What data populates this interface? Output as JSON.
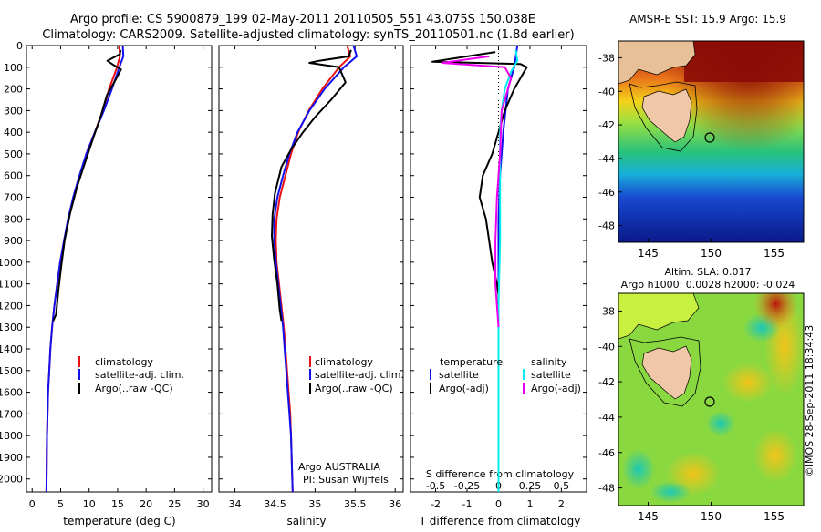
{
  "title_line1": "Argo profile: CS 5900879_199 02-May-2011 20110505_551 43.075S 150.038E",
  "title_line2": "Climatology: CARS2009. Satellite-adjusted climatology: synTS_20110501.nc (1.8d earlier)",
  "footer": "©IMOS 28-Sep-2011 18:34:43",
  "depth_ticks": [
    0,
    100,
    200,
    300,
    400,
    500,
    600,
    700,
    800,
    900,
    1000,
    1100,
    1200,
    1300,
    1400,
    1500,
    1600,
    1700,
    1800,
    1900,
    2000
  ],
  "chart_data": [
    {
      "type": "line",
      "id": "temperature",
      "xlabel": "temperature (deg C)",
      "ylabel": "",
      "xlim": [
        -1,
        31.5
      ],
      "ylim": [
        2060,
        0
      ],
      "xticks": [
        0,
        5,
        10,
        15,
        20,
        25,
        30
      ],
      "legend": {
        "placement": "bottom-left",
        "entries": [
          {
            "label": "climatology",
            "color": "#e11"
          },
          {
            "label": "satellite-adj. clim.",
            "color": "#11e"
          },
          {
            "label": "Argo(..raw -QC)",
            "color": "#000"
          }
        ]
      },
      "series": [
        {
          "name": "climatology",
          "color": "#e11",
          "x": [
            15.3,
            15.4,
            14.9,
            13.5,
            12.4,
            11.0,
            9.5,
            8.4,
            7.3,
            6.4,
            5.6,
            4.9,
            4.4,
            3.9,
            3.5,
            3.2,
            3.0,
            2.8,
            2.7,
            2.6,
            2.5
          ],
          "y": [
            0,
            50,
            100,
            200,
            300,
            400,
            500,
            600,
            700,
            800,
            900,
            1000,
            1100,
            1200,
            1300,
            1400,
            1500,
            1600,
            1700,
            1800,
            2060
          ]
        },
        {
          "name": "satellite-adj. clim.",
          "color": "#11e",
          "x": [
            15.9,
            16.0,
            15.3,
            14.0,
            12.6,
            11.0,
            9.5,
            8.3,
            7.2,
            6.3,
            5.6,
            4.9,
            4.4,
            3.9,
            3.5,
            3.2,
            3.0,
            2.8,
            2.7,
            2.6,
            2.5
          ],
          "y": [
            0,
            50,
            100,
            200,
            300,
            400,
            500,
            600,
            700,
            800,
            900,
            1000,
            1100,
            1200,
            1300,
            1400,
            1500,
            1600,
            1700,
            1800,
            2060
          ]
        },
        {
          "name": "Argo(..raw -QC)",
          "color": "#000",
          "x": [
            15.5,
            15.4,
            13.2,
            14.3,
            15.6,
            14.6,
            13.1,
            12.0,
            10.8,
            9.4,
            7.9,
            6.6,
            5.7,
            5.1,
            4.6,
            4.2,
            3.7
          ],
          "y": [
            20,
            40,
            70,
            90,
            110,
            160,
            230,
            330,
            420,
            530,
            650,
            780,
            900,
            1020,
            1130,
            1240,
            1270
          ]
        }
      ]
    },
    {
      "type": "line",
      "id": "salinity",
      "xlabel": "salinity",
      "xlim": [
        33.8,
        36.1
      ],
      "ylim": [
        2060,
        0
      ],
      "xticks": [
        34,
        34.5,
        35,
        35.5,
        36
      ],
      "xticklabels": [
        "34",
        "34.5",
        "35",
        "35.5",
        "36"
      ],
      "legend": {
        "placement": "bottom-left",
        "entries": [
          {
            "label": "climatology",
            "color": "#e11"
          },
          {
            "label": "satellite-adj. clim.",
            "color": "#11e"
          },
          {
            "label": "Argo(..raw -QC)",
            "color": "#000"
          }
        ]
      },
      "annotation": [
        "Argo AUSTRALIA",
        "PI: Susan Wijffels"
      ],
      "series": [
        {
          "name": "climatology",
          "color": "#e11",
          "x": [
            35.4,
            35.44,
            35.3,
            35.09,
            34.92,
            34.79,
            34.7,
            34.63,
            34.56,
            34.52,
            34.51,
            34.52,
            34.55,
            34.58,
            34.61,
            34.63,
            34.65,
            34.67,
            34.69,
            34.7,
            34.72
          ],
          "y": [
            0,
            50,
            100,
            200,
            300,
            400,
            500,
            600,
            700,
            800,
            900,
            1000,
            1100,
            1200,
            1300,
            1400,
            1500,
            1600,
            1700,
            1800,
            2060
          ]
        },
        {
          "name": "satellite-adj. clim.",
          "color": "#11e",
          "x": [
            35.48,
            35.52,
            35.36,
            35.12,
            34.93,
            34.78,
            34.68,
            34.6,
            34.53,
            34.49,
            34.49,
            34.51,
            34.54,
            34.57,
            34.6,
            34.62,
            34.64,
            34.66,
            34.68,
            34.7,
            34.72
          ],
          "y": [
            0,
            50,
            100,
            200,
            300,
            400,
            500,
            600,
            700,
            800,
            900,
            1000,
            1100,
            1200,
            1300,
            1400,
            1500,
            1600,
            1700,
            1800,
            2060
          ]
        },
        {
          "name": "Argo(..raw -QC)",
          "color": "#000",
          "x": [
            35.45,
            35.42,
            35.05,
            34.93,
            35.3,
            35.38,
            35.2,
            35.0,
            34.85,
            34.7,
            34.58,
            34.5,
            34.47,
            34.46,
            34.49,
            34.53,
            34.56,
            34.58
          ],
          "y": [
            20,
            50,
            70,
            80,
            100,
            170,
            250,
            330,
            400,
            480,
            560,
            680,
            780,
            880,
            990,
            1100,
            1220,
            1270
          ]
        }
      ]
    },
    {
      "type": "line",
      "id": "difference",
      "xlabel": "T difference from climatology",
      "xlabel_top": "S difference from climatology",
      "xlim": [
        -2.8,
        2.8
      ],
      "ylim": [
        2060,
        0
      ],
      "xticks": [
        -2,
        -1,
        0,
        1,
        2
      ],
      "xticks_s": [
        -0.5,
        -0.25,
        0,
        0.25,
        0.5
      ],
      "xticklabels_s": [
        "-0.5",
        "-0.25",
        "0",
        "0.25",
        "0.5"
      ],
      "legend": {
        "placement": "bottom",
        "temperature": {
          "header": "temperature",
          "entries": [
            {
              "label": "satellite",
              "color": "#11e"
            },
            {
              "label": "Argo(-adj)",
              "color": "#000"
            }
          ]
        },
        "salinity": {
          "header": "salinity",
          "entries": [
            {
              "label": "satellite",
              "color": "#0ee"
            },
            {
              "label": "Argo(-adj)",
              "color": "#e0e"
            }
          ]
        }
      },
      "series": [
        {
          "name": "temperature satellite",
          "color": "#11e",
          "x": [
            0.6,
            0.5,
            0.3,
            0.15,
            0.05,
            0.0,
            0.0,
            0.0,
            0.0,
            0.0,
            0.0
          ],
          "y": [
            0,
            100,
            200,
            400,
            600,
            800,
            1000,
            1200,
            1400,
            1600,
            2060
          ]
        },
        {
          "name": "temperature Argo(-adj)",
          "color": "#000",
          "x": [
            -0.1,
            -2.1,
            0.7,
            0.9,
            0.5,
            0.2,
            -0.2,
            -0.5,
            -0.6,
            -0.4,
            -0.3,
            -0.2,
            -0.05,
            0.0,
            0.0,
            0.0,
            0.0,
            0.0,
            0.0,
            0.0,
            0.0
          ],
          "y": [
            30,
            75,
            85,
            100,
            200,
            300,
            500,
            600,
            700,
            800,
            900,
            1000,
            1100,
            1150,
            1200,
            1230,
            1260,
            1300,
            1600,
            1800,
            2060
          ]
        },
        {
          "name": "salinity satellite",
          "color": "#0ee",
          "x": [
            0.55,
            0.6,
            0.4,
            0.2,
            0.1,
            0.05,
            0.05,
            0.05,
            0.0,
            0.0,
            0.0
          ],
          "y": [
            20,
            70,
            120,
            200,
            300,
            400,
            600,
            900,
            1200,
            1600,
            2060
          ]
        },
        {
          "name": "salinity Argo(-adj)",
          "color": "#e0e",
          "x": [
            -0.3,
            -1.8,
            0.2,
            0.4,
            0.3,
            0.1,
            0.05,
            -0.05,
            -0.1,
            -0.1,
            0.0
          ],
          "y": [
            50,
            80,
            100,
            150,
            200,
            300,
            500,
            700,
            900,
            1100,
            1300
          ]
        }
      ]
    }
  ],
  "maps": [
    {
      "id": "sst",
      "title": "AMSR-E SST: 15.9 Argo: 15.9",
      "xticks": [
        "145",
        "150",
        "155"
      ],
      "yticks": [
        "-38",
        "-40",
        "-42",
        "-44",
        "-46",
        "-48"
      ]
    },
    {
      "id": "sla",
      "title1": "Altim. SLA: 0.017",
      "title2": "Argo h1000: 0.0028 h2000: -0.024",
      "xticks": [
        "145",
        "150",
        "155"
      ],
      "yticks": [
        "-38",
        "-40",
        "-42",
        "-44",
        "-46",
        "-48"
      ]
    }
  ]
}
